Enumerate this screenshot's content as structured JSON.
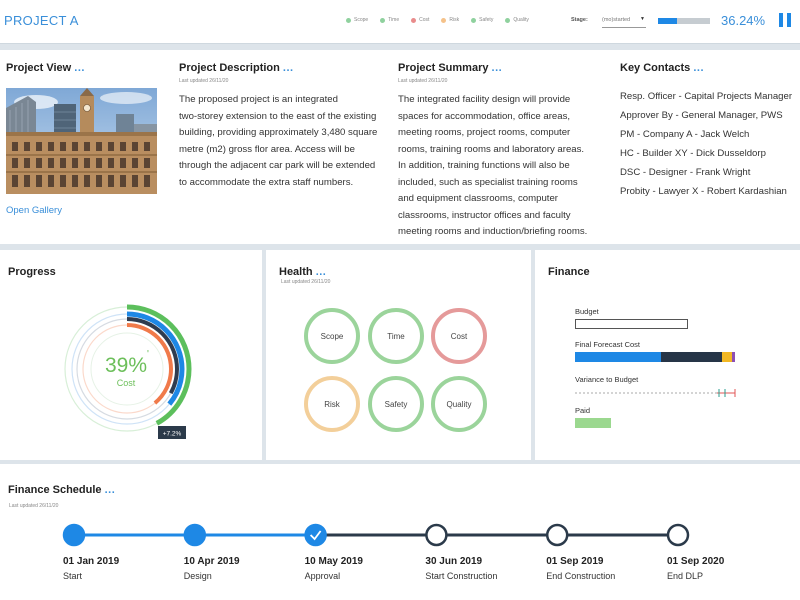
{
  "header": {
    "project_title": "PROJECT A",
    "legend": [
      {
        "label": "Scope",
        "color": "#8fd19e"
      },
      {
        "label": "Time",
        "color": "#8fd19e"
      },
      {
        "label": "Cost",
        "color": "#e98c8c"
      },
      {
        "label": "Risk",
        "color": "#f5c28a"
      },
      {
        "label": "Safety",
        "color": "#8fd19e"
      },
      {
        "label": "Quality",
        "color": "#8fd19e"
      }
    ],
    "stage_label": "Stage:",
    "stage_value": "(mo)started",
    "progress_fraction": 0.3624,
    "progress_text": "36.24%"
  },
  "project_view": {
    "title": "Project View",
    "dots": "...",
    "gallery_link": "Open Gallery"
  },
  "project_description": {
    "title": "Project Description",
    "dots": "...",
    "updated": "Last updated 26/11/20",
    "lines": [
      "The proposed project is an integrated",
      "two-storey extension to the east of the existing",
      "building, providing approximately 3,480 square",
      "metre (m2) gross flor area. Access will be",
      "through the adjacent car park will be extended",
      "to accommodate the extra staff numbers."
    ]
  },
  "project_summary": {
    "title": "Project Summary",
    "dots": "...",
    "updated": "Last updated 26/11/20",
    "lines": [
      "The integrated facility design will provide",
      "spaces for accommodation, office areas,",
      "meeting rooms, project rooms, computer",
      "rooms, training rooms and laboratory areas.",
      "In addition, training functions will also be",
      "included, such as specialist training rooms",
      "and equipment classrooms, computer",
      "classrooms, instructor offices and faculty",
      "meeting rooms and induction/briefing rooms."
    ]
  },
  "key_contacts": {
    "title": "Key Contacts",
    "dots": "...",
    "items": [
      "Resp. Officer - Capital Projects Manager",
      "Approver By - General Manager, PWS",
      "PM - Company A - Jack Welch",
      "HC - Builder XY - Dick Dusseldorp",
      "DSC - Designer - Frank Wright",
      "Probity - Lawyer X - Robert Kardashian"
    ]
  },
  "progress": {
    "title": "Progress",
    "center_value": "39%",
    "center_mark": "'",
    "center_label": "Cost",
    "badge": "+7.2%",
    "rings": [
      {
        "name": "green-outer",
        "fraction": 0.42,
        "color": "#5cbf5c"
      },
      {
        "name": "blue",
        "fraction": 0.36,
        "color": "#1e88e5"
      },
      {
        "name": "navy",
        "fraction": 0.33,
        "color": "#2f3c4f"
      },
      {
        "name": "orange",
        "fraction": 0.39,
        "color": "#f07a4a"
      }
    ]
  },
  "health": {
    "title": "Health",
    "dots": "...",
    "updated": "Last updated 26/11/20",
    "items": [
      {
        "label": "Scope",
        "color": "#9bd49b"
      },
      {
        "label": "Time",
        "color": "#9bd49b"
      },
      {
        "label": "Cost",
        "color": "#e59a9a"
      },
      {
        "label": "Risk",
        "color": "#f3cf9a"
      },
      {
        "label": "Safety",
        "color": "#9bd49b"
      },
      {
        "label": "Quality",
        "color": "#9bd49b"
      }
    ]
  },
  "finance": {
    "title": "Finance",
    "budget_label": "Budget",
    "forecast_label": "Final Forecast Cost",
    "variance_label": "Variance to Budget",
    "paid_label": "Paid",
    "budget_fill": 0.0,
    "forecast_segments": [
      {
        "name": "blue",
        "fraction": 0.52,
        "color": "#1e88e5"
      },
      {
        "name": "navy",
        "fraction": 0.37,
        "color": "#263547"
      },
      {
        "name": "yellow",
        "fraction": 0.06,
        "color": "#f2b824"
      },
      {
        "name": "purple",
        "fraction": 0.02,
        "color": "#8e4fb3"
      }
    ],
    "paid_fraction": 0.22,
    "paid_color": "#9bd88f"
  },
  "schedule": {
    "title": "Finance Schedule",
    "dots": "...",
    "updated": "Last updated 26/11/20",
    "milestones": [
      {
        "date": "01 Jan 2019",
        "label": "Start",
        "status": "done"
      },
      {
        "date": "10 Apr 2019",
        "label": "Design",
        "status": "done"
      },
      {
        "date": "10 May 2019",
        "label": "Approval",
        "status": "current"
      },
      {
        "date": "30 Jun 2019",
        "label": "Start Construction",
        "status": "upcoming"
      },
      {
        "date": "01 Sep 2019",
        "label": "End Construction",
        "status": "upcoming"
      },
      {
        "date": "01 Sep 2020",
        "label": "End DLP",
        "status": "upcoming"
      }
    ]
  }
}
